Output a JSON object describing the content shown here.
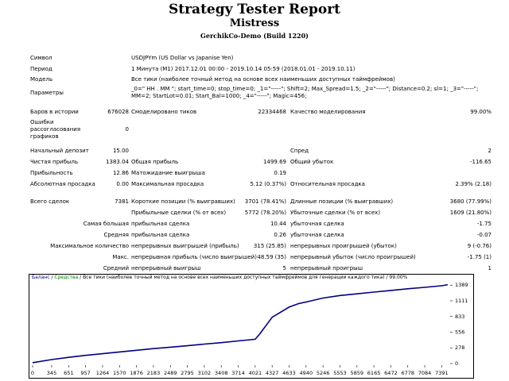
{
  "report": {
    "title": "Strategy Tester Report",
    "expert": "Mistress",
    "server": "GerchikCo-Demo (Build 1220)"
  },
  "info": {
    "symbol_label": "Символ",
    "symbol_value": "USDJPYm (US Dollar vs Japanise Yen)",
    "period_label": "Период",
    "period_value": "1 Минута (M1) 2017.12.01 00:00 - 2019.10.14 05:59 (2018.01.01 - 2019.10.11)",
    "model_label": "Модель",
    "model_value": "Все тики (наиболее точный метод на основе всех наименьших доступных таймфреймов)",
    "params_label": "Параметры",
    "params_value": "_0=\" HH . MM \"; start_time=0; stop_time=0; _1=\"-----\"; Shift=2; Max_Spread=1.5; _2=\"-----\"; Distance=0.2; sl=1; _3=\"-----\"; MM=2; StartLot=0.01; Start_Bal=1000; _4=\"-----\"; Magic=456;"
  },
  "stats": {
    "bars_label": "Баров в истории",
    "bars_value": "676028",
    "ticks_label": "Смоделировано тиков",
    "ticks_value": "22334468",
    "quality_label": "Качество моделирования",
    "quality_value": "99.00%",
    "errors_label": "Ошибки рассогласования графиков",
    "errors_value": "0",
    "deposit_label": "Начальный депозит",
    "deposit_value": "15.00",
    "spread_label": "Спред",
    "spread_value": "2",
    "net_label": "Чистая прибыль",
    "net_value": "1383.04",
    "gross_profit_label": "Общая прибыль",
    "gross_profit_value": "1499.69",
    "gross_loss_label": "Общий убыток",
    "gross_loss_value": "-116.65",
    "pf_label": "Прибыльность",
    "pf_value": "12.86",
    "payoff_label": "Матожидание выигрыша",
    "payoff_value": "0.19",
    "abs_dd_label": "Абсолютная просадка",
    "abs_dd_value": "0.00",
    "max_dd_label": "Максимальная просадка",
    "max_dd_value": "5.12 (0.37%)",
    "rel_dd_label": "Относительная просадка",
    "rel_dd_value": "2.39% (2.18)",
    "trades_label": "Всего сделок",
    "trades_value": "7381",
    "short_label": "Короткие позиции (% выигравших)",
    "short_value": "3701 (78.41%)",
    "long_label": "Длинные позиции (% выигравших)",
    "long_value": "3680 (77.99%)",
    "profit_trades_label": "Прибыльные сделки (% от всех)",
    "profit_trades_value": "5772 (78.20%)",
    "loss_trades_label": "Убыточные сделки (% от всех)",
    "loss_trades_value": "1609 (21.80%)",
    "largest_label": "Самая большая",
    "largest_profit_label": "прибыльная сделка",
    "largest_profit_value": "10.44",
    "largest_loss_label": "убыточная сделка",
    "largest_loss_value": "-1.75",
    "average_label": "Средняя",
    "average_profit_label": "прибыльная сделка",
    "average_profit_value": "0.26",
    "average_loss_label": "убыточная сделка",
    "average_loss_value": "-0.07",
    "max_count_label": "Максимальное количество",
    "max_cons_wins_label": "непрерывных выигрышей (прибыль)",
    "max_cons_wins_value": "315 (25.85)",
    "max_cons_losses_label": "непрерывных проигрышей (убыток)",
    "max_cons_losses_value": "9 (-0.76)",
    "max_label": "Макс.",
    "max_cons_profit_label": "непрерывная прибыль (число выигрышей)",
    "max_cons_profit_value": "48.59 (35)",
    "max_cons_loss_label": "непрерывный убыток (число проигрышей)",
    "max_cons_loss_value": "-1.75 (1)",
    "avg_label": "Средний",
    "avg_cons_wins_label": "непрерывный выигрыш",
    "avg_cons_wins_value": "5",
    "avg_cons_losses_label": "непрерывный проигрыш",
    "avg_cons_losses_value": "1"
  },
  "legend": {
    "balance": "Баланс",
    "sep1": " / ",
    "equity": "Средства",
    "sep2": " / ",
    "rest": "Все тики (наиболее точный метод на основе всех наименьших доступных таймфреймов для генерации каждого тика) / 99.00%"
  },
  "chart_data": {
    "type": "line",
    "title": "",
    "xlabel": "",
    "ylabel": "",
    "x_ticks": [
      0,
      345,
      651,
      957,
      1264,
      1570,
      1876,
      2183,
      2489,
      2795,
      3102,
      3408,
      3714,
      4021,
      4327,
      4633,
      4940,
      5246,
      5553,
      5859,
      6165,
      6472,
      6778,
      7084,
      7391
    ],
    "y_ticks": [
      0,
      278,
      556,
      833,
      1111,
      1389
    ],
    "xlim": [
      0,
      7500
    ],
    "ylim": [
      0,
      1420
    ],
    "grid": false,
    "series": [
      {
        "name": "Баланс",
        "color": "#000080",
        "x": [
          0,
          345,
          651,
          957,
          1264,
          1570,
          1876,
          2183,
          2489,
          2795,
          3102,
          3408,
          3714,
          4021,
          4100,
          4327,
          4633,
          4800,
          4940,
          5246,
          5553,
          5859,
          6165,
          6472,
          6778,
          7084,
          7391,
          7500
        ],
        "y": [
          15,
          70,
          110,
          145,
          175,
          205,
          235,
          265,
          290,
          315,
          345,
          370,
          400,
          430,
          520,
          820,
          1000,
          1060,
          1090,
          1160,
          1205,
          1235,
          1265,
          1295,
          1325,
          1350,
          1378,
          1398
        ]
      }
    ]
  }
}
